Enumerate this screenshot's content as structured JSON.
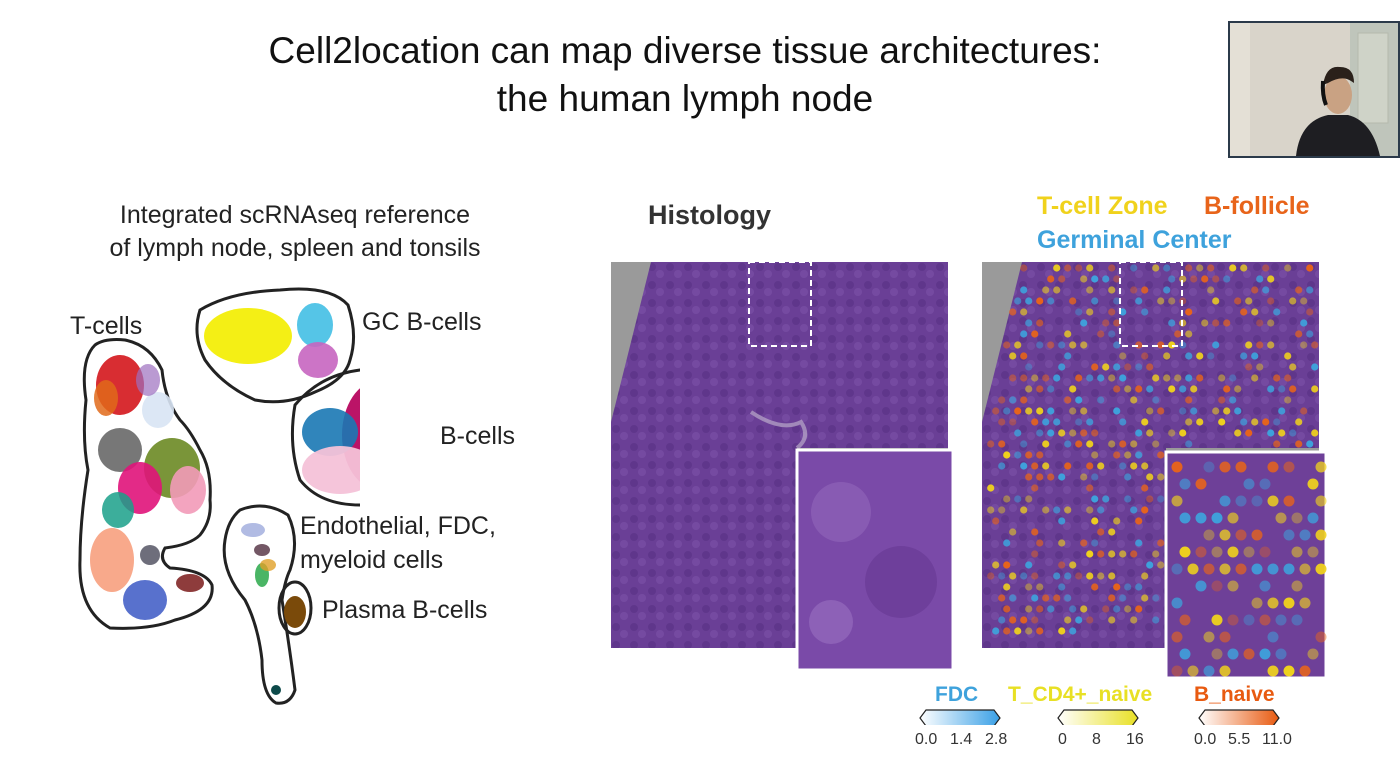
{
  "slide": {
    "title_line1": "Cell2location can map diverse tissue architectures:",
    "title_line2": "the human lymph node"
  },
  "umap_panel": {
    "reference_line1": "Integrated scRNAseq reference",
    "reference_line2": "of lymph node, spleen and tonsils",
    "labels": {
      "t_cells": "T-cells",
      "gc_b_cells": "GC B-cells",
      "b_cells": "B-cells",
      "endothelial_line1": "Endothelial, FDC,",
      "endothelial_line2": "myeloid cells",
      "plasma_b_cells": "Plasma B-cells"
    }
  },
  "histology_panel": {
    "title": "Histology"
  },
  "mapping_panel": {
    "legend": {
      "t_cell_zone": "T-cell Zone",
      "b_follicle": "B-follicle",
      "germinal_center": "Germinal Center"
    },
    "colorbars": [
      {
        "label": "FDC",
        "ticks": [
          "0.0",
          "1.4",
          "2.8"
        ],
        "color": "#3aa0e6"
      },
      {
        "label": "T_CD4+_naive",
        "ticks": [
          "0",
          "8",
          "16"
        ],
        "color": "#e8e024"
      },
      {
        "label": "B_naive",
        "ticks": [
          "0.0",
          "5.5",
          "11.0"
        ],
        "color": "#e85a10"
      }
    ]
  },
  "colors": {
    "t_cell_zone": "#f0d21c",
    "b_follicle": "#e8641a",
    "germinal_center": "#3ea2dc",
    "tissue": "#6a3f96"
  }
}
